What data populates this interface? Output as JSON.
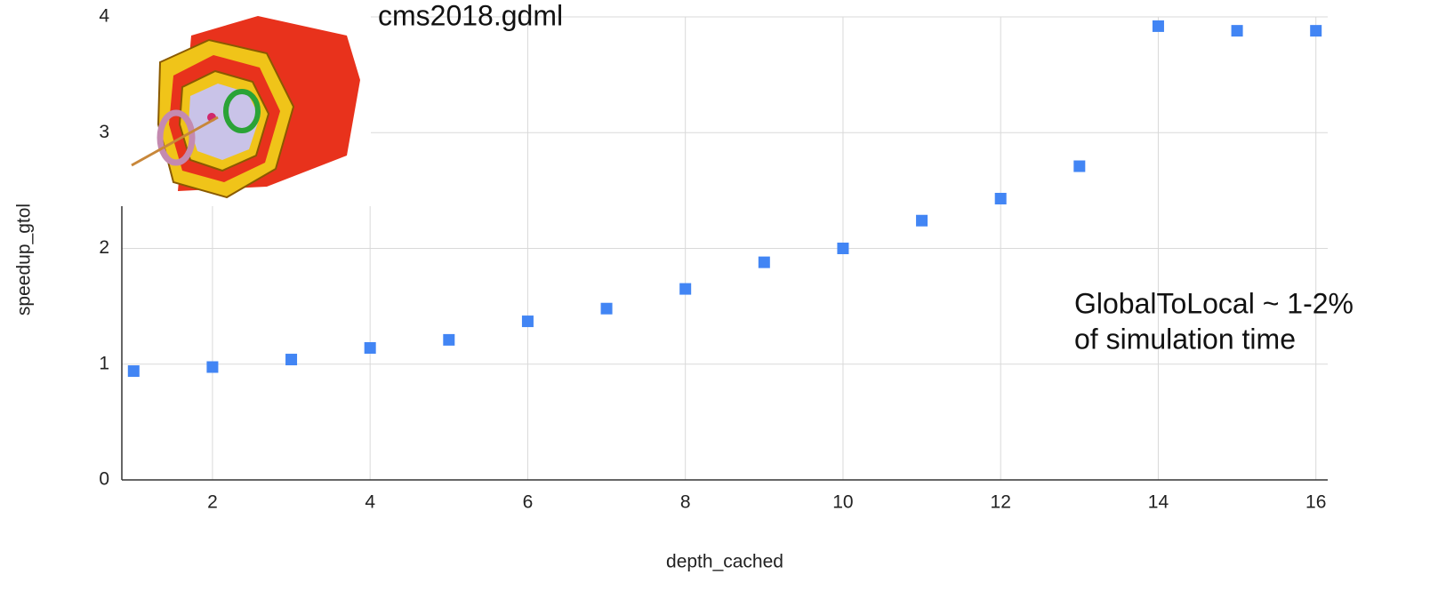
{
  "chart_data": {
    "type": "scatter",
    "x_label": "depth_cached",
    "y_label": "speedup_gtol",
    "annotations": [
      "cms2018.gdml",
      "GlobalToLocal ~ 1-2%",
      "of simulation time"
    ],
    "x": [
      1,
      2,
      3,
      4,
      5,
      6,
      7,
      8,
      9,
      10,
      11,
      12,
      13,
      14,
      15,
      16
    ],
    "series": [
      {
        "color": "#4285f4",
        "values": [
          0.94,
          0.975,
          1.04,
          1.14,
          1.21,
          1.37,
          1.48,
          1.65,
          1.88,
          2.0,
          2.24,
          2.43,
          2.71,
          3.92,
          3.88,
          3.88
        ]
      }
    ],
    "xlim": [
      0.85,
      16.15
    ],
    "xticks": [
      2,
      4,
      6,
      8,
      10,
      12,
      14,
      16
    ],
    "ylim": [
      0,
      4
    ],
    "yticks": [
      0,
      1,
      2,
      3,
      4
    ],
    "grid": true
  }
}
